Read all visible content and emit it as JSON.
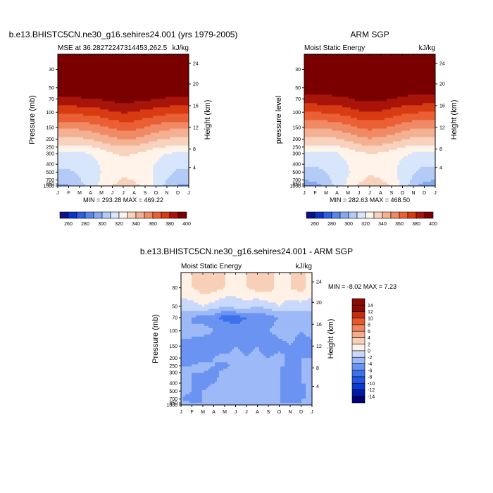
{
  "chart_data": [
    {
      "type": "heatmap",
      "title": "b.e13.BHISTC5CN.ne30_g16.sehires24.001 (yrs 1979-2005)",
      "subtitle_left": "MSE at 36.28272247314453,262.5",
      "units": "kJ/kg",
      "xlabel": "",
      "ylabel": "Pressure (mb)",
      "ylabel_right": "Height (km)",
      "x_ticks": [
        "J",
        "F",
        "M",
        "A",
        "M",
        "J",
        "J",
        "A",
        "S",
        "O",
        "N",
        "D",
        "J"
      ],
      "y_ticks": [
        "30",
        "50",
        "70",
        "100",
        "150",
        "200",
        "250",
        "300",
        "400",
        "500",
        "700",
        "850",
        "1000"
      ],
      "y_ticks_right": [
        "24",
        "20",
        "16",
        "12",
        "8",
        "4"
      ],
      "minmax": "MIN = 293.28 MAX = 469.22",
      "colorbar_labels": [
        "260",
        "280",
        "300",
        "320",
        "340",
        "360",
        "380",
        "400"
      ],
      "data_grid": [
        [
          420,
          420,
          420,
          420,
          420,
          420,
          420,
          420,
          420,
          420,
          420,
          420,
          420
        ],
        [
          396,
          396,
          397,
          397,
          398,
          400,
          400,
          400,
          399,
          397,
          397,
          396,
          396
        ],
        [
          388,
          388,
          389,
          390,
          391,
          393,
          394,
          393,
          392,
          390,
          389,
          388,
          388
        ],
        [
          372,
          372,
          373,
          374,
          376,
          379,
          381,
          380,
          377,
          375,
          373,
          372,
          372
        ],
        [
          352,
          352,
          353,
          355,
          358,
          362,
          364,
          363,
          360,
          356,
          353,
          352,
          352
        ],
        [
          338,
          338,
          338,
          340,
          344,
          348,
          350,
          349,
          346,
          342,
          339,
          338,
          338
        ],
        [
          328,
          328,
          328,
          329,
          333,
          337,
          339,
          338,
          335,
          331,
          329,
          328,
          328
        ],
        [
          318,
          318,
          318,
          320,
          324,
          329,
          331,
          330,
          327,
          323,
          320,
          318,
          318
        ],
        [
          312,
          312,
          313,
          316,
          321,
          326,
          328,
          327,
          324,
          319,
          314,
          312,
          312
        ],
        [
          308,
          309,
          311,
          315,
          320,
          325,
          328,
          327,
          324,
          318,
          312,
          309,
          308
        ],
        [
          303,
          305,
          309,
          315,
          321,
          327,
          331,
          330,
          325,
          318,
          310,
          305,
          303
        ],
        [
          300,
          302,
          307,
          314,
          322,
          329,
          333,
          332,
          326,
          317,
          308,
          302,
          300
        ],
        [
          296,
          298,
          305,
          313,
          323,
          331,
          335,
          334,
          327,
          316,
          306,
          298,
          296
        ]
      ]
    },
    {
      "type": "heatmap",
      "title": "ARM SGP",
      "subtitle_left": "Moist Static Energy",
      "units": "kJ/kg",
      "xlabel": "",
      "ylabel": "pressure level",
      "ylabel_right": "Height (km)",
      "x_ticks": [
        "J",
        "F",
        "M",
        "A",
        "M",
        "J",
        "J",
        "A",
        "S",
        "O",
        "N",
        "D",
        "J"
      ],
      "y_ticks": [
        "30",
        "50",
        "70",
        "100",
        "150",
        "200",
        "250",
        "300",
        "400",
        "500",
        "700",
        "850",
        "1000"
      ],
      "y_ticks_right": [
        "24",
        "20",
        "16",
        "12",
        "8",
        "4"
      ],
      "minmax": "MIN = 282.63 MAX = 468.50",
      "colorbar_labels": [
        "260",
        "280",
        "300",
        "320",
        "340",
        "360",
        "380",
        "400"
      ],
      "data_grid": [
        [
          420,
          420,
          420,
          420,
          420,
          420,
          420,
          420,
          420,
          420,
          420,
          420,
          420
        ],
        [
          395,
          395,
          396,
          396,
          397,
          399,
          399,
          399,
          398,
          396,
          396,
          395,
          395
        ],
        [
          386,
          386,
          387,
          388,
          389,
          392,
          393,
          392,
          390,
          388,
          387,
          386,
          386
        ],
        [
          370,
          370,
          371,
          372,
          375,
          378,
          380,
          379,
          376,
          373,
          371,
          370,
          370
        ],
        [
          351,
          351,
          352,
          354,
          357,
          361,
          363,
          362,
          359,
          355,
          352,
          351,
          351
        ],
        [
          337,
          337,
          337,
          339,
          343,
          347,
          349,
          348,
          345,
          341,
          338,
          337,
          337
        ],
        [
          327,
          327,
          327,
          328,
          332,
          336,
          338,
          337,
          334,
          330,
          328,
          327,
          327
        ],
        [
          317,
          317,
          317,
          319,
          323,
          328,
          330,
          329,
          326,
          322,
          319,
          317,
          317
        ],
        [
          311,
          311,
          312,
          315,
          320,
          325,
          328,
          326,
          323,
          318,
          313,
          311,
          311
        ],
        [
          306,
          307,
          310,
          314,
          319,
          325,
          329,
          327,
          323,
          317,
          311,
          307,
          306
        ],
        [
          300,
          302,
          307,
          314,
          321,
          328,
          332,
          331,
          325,
          317,
          308,
          302,
          300
        ],
        [
          295,
          298,
          305,
          313,
          322,
          330,
          336,
          335,
          327,
          316,
          305,
          298,
          295
        ],
        [
          290,
          293,
          302,
          312,
          323,
          333,
          338,
          337,
          328,
          315,
          302,
          293,
          290
        ]
      ]
    },
    {
      "type": "heatmap",
      "title": "b.e13.BHISTC5CN.ne30_g16.sehires24.001 - ARM SGP",
      "subtitle_left": "Moist Static Energy",
      "units": "kJ/kg",
      "xlabel": "",
      "ylabel": "Pressure (mb)",
      "ylabel_right": "Height (km)",
      "x_ticks": [
        "J",
        "F",
        "M",
        "A",
        "M",
        "J",
        "J",
        "A",
        "S",
        "O",
        "N",
        "D",
        "J"
      ],
      "y_ticks": [
        "30",
        "50",
        "70",
        "100",
        "150",
        "200",
        "250",
        "300",
        "400",
        "500",
        "700",
        "850",
        "1000"
      ],
      "y_ticks_right": [
        "24",
        "20",
        "16",
        "12",
        "8",
        "4"
      ],
      "minmax": "MIN =  -8.02 MAX =   7.23",
      "colorbar_labels": [
        "14",
        "12",
        "10",
        "8",
        "6",
        "4",
        "2",
        "0",
        "-2",
        "-4",
        "-6",
        "-8",
        "-10",
        "-12",
        "-14"
      ],
      "data_grid": [
        [
          1,
          2,
          3,
          3,
          2,
          1,
          2,
          3,
          3,
          1,
          2,
          3,
          1
        ],
        [
          -1,
          -1,
          0,
          -1,
          -2,
          -1,
          -1,
          -2,
          -1,
          0,
          -1,
          -1,
          -1
        ],
        [
          -4,
          -4,
          -5,
          -5,
          -7,
          -7,
          -6,
          -6,
          -5,
          -4,
          -4,
          -4,
          -4
        ],
        [
          -3,
          -4,
          -3,
          -4,
          -4,
          -5,
          -5,
          -4,
          -4,
          -3,
          -3,
          -4,
          -3
        ],
        [
          -5,
          -4,
          -6,
          -5,
          -6,
          -4,
          -5,
          -4,
          -6,
          -5,
          -4,
          -5,
          -5
        ],
        [
          -4,
          -5,
          -5,
          -4,
          -3,
          -3,
          -4,
          -3,
          -4,
          -3,
          -5,
          -4,
          -4
        ],
        [
          -4,
          -4,
          -3,
          -4,
          -5,
          -3,
          -3,
          -3,
          -3,
          -4,
          -4,
          -4,
          -4
        ],
        [
          -3,
          -4,
          -4,
          -5,
          -3,
          -3,
          -4,
          -3,
          -2,
          -4,
          -5,
          -4,
          -3
        ],
        [
          -4,
          -4,
          -5,
          -4,
          -3,
          -2,
          -3,
          -3,
          -2,
          -4,
          -5,
          -4,
          -4
        ],
        [
          -3,
          -4,
          -4,
          -3,
          -4,
          -3,
          -2,
          -3,
          -3,
          -4,
          -4,
          -5,
          -3
        ],
        [
          -4,
          -5,
          -4,
          -3,
          -4,
          -3,
          -3,
          -2,
          -3,
          -4,
          -5,
          -4,
          -4
        ],
        [
          -3,
          -4,
          -4,
          -4,
          -4,
          -4,
          -3,
          -3,
          -3,
          -4,
          -4,
          -4,
          -3
        ],
        [
          -1,
          -2,
          -3,
          -2,
          -1,
          -2,
          -2,
          -2,
          -2,
          -2,
          -2,
          -2,
          -1
        ]
      ]
    }
  ],
  "colors": {
    "mse_scale": [
      "#08108c",
      "#0a33c8",
      "#2e5fe0",
      "#5a86ea",
      "#88a9f0",
      "#b4cbf7",
      "#d8e6fc",
      "#fff3ea",
      "#f8d2bc",
      "#f4b092",
      "#f08a64",
      "#ea6034",
      "#d83a12",
      "#a8140a",
      "#7a0000"
    ],
    "diff_scale": [
      "#000072",
      "#001aa8",
      "#0b3ad0",
      "#2057e6",
      "#3d71ee",
      "#6a93f2",
      "#9db9f7",
      "#c9d9fb",
      "#fff1e6",
      "#f8d0b8",
      "#f4ae8e",
      "#f08660",
      "#e25a2e",
      "#c42e10",
      "#8c0a02"
    ]
  }
}
